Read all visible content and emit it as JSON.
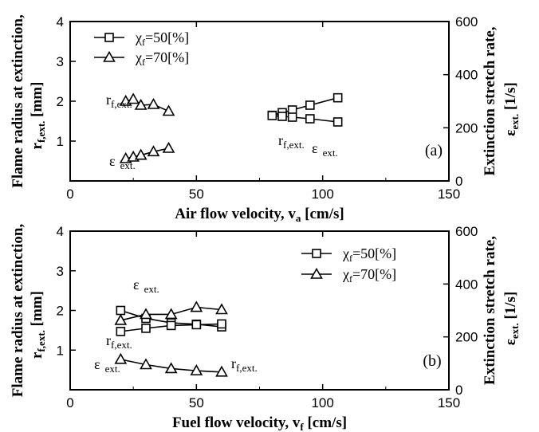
{
  "chart_data": [
    {
      "type": "line",
      "panel_label": "(a)",
      "xlabel": "Air flow velocity, v",
      "xlabel_sub": "a",
      "xlabel_unit": " [cm/s]",
      "ylabel_left_main": "Flame radius at extinction,",
      "ylabel_left_sym": "r",
      "ylabel_left_sub": "f,ext.",
      "ylabel_left_unit": " [mm]",
      "ylabel_right_main": "Extinction stretch rate,",
      "ylabel_right_sym": "ε",
      "ylabel_right_sub": "ext.",
      "ylabel_right_unit": " [1/s]",
      "xlim": [
        0,
        150
      ],
      "ylim_left": [
        0,
        4
      ],
      "ylim_right": [
        0,
        600
      ],
      "xticks": [
        "0",
        "50",
        "100",
        "150"
      ],
      "yticks_left": [
        "1",
        "2",
        "3",
        "4"
      ],
      "yticks_right": [
        "0",
        "200",
        "400",
        "600"
      ],
      "legend": [
        {
          "chi": "χ",
          "sub": "f",
          "value": "=50[%]",
          "marker": "square"
        },
        {
          "chi": "χ",
          "sub": "f",
          "value": "=70[%]",
          "marker": "triangle"
        }
      ],
      "series": [
        {
          "marker": "square",
          "axis": "right",
          "x": [
            80,
            84,
            88,
            95,
            106
          ],
          "y": [
            247,
            257,
            267,
            285,
            313
          ]
        },
        {
          "marker": "square",
          "axis": "left",
          "x": [
            80,
            84,
            88,
            95,
            106
          ],
          "y": [
            1.64,
            1.62,
            1.6,
            1.56,
            1.48
          ]
        },
        {
          "marker": "triangle",
          "axis": "left",
          "x": [
            22,
            25,
            28,
            33,
            39
          ],
          "y": [
            2.0,
            2.05,
            1.9,
            1.92,
            1.75
          ]
        },
        {
          "marker": "triangle",
          "axis": "right",
          "x": [
            22,
            25,
            28,
            33,
            39
          ],
          "y": [
            84,
            90,
            97,
            110,
            123
          ]
        }
      ],
      "annotations": [
        {
          "sym": "ε",
          "sub": "ext."
        },
        {
          "sym": "r",
          "sub": "f,ext."
        },
        {
          "sym": "r",
          "sub": "f,ext."
        },
        {
          "sym": "ε",
          "sub": "ext."
        }
      ]
    },
    {
      "type": "line",
      "panel_label": "(b)",
      "xlabel": "Fuel flow velocity, v",
      "xlabel_sub": "f",
      "xlabel_unit": " [cm/s]",
      "ylabel_left_main": "Flame radius at extinction,",
      "ylabel_left_sym": "r",
      "ylabel_left_sub": "f,ext.",
      "ylabel_left_unit": " [mm]",
      "ylabel_right_main": "Extinction stretch rate,",
      "ylabel_right_sym": "ε",
      "ylabel_right_sub": "ext.",
      "ylabel_right_unit": " [1/s]",
      "xlim": [
        0,
        150
      ],
      "ylim_left": [
        0,
        4
      ],
      "ylim_right": [
        0,
        600
      ],
      "xticks": [
        "0",
        "50",
        "100",
        "150"
      ],
      "yticks_left": [
        "1",
        "2",
        "3",
        "4"
      ],
      "yticks_right": [
        "0",
        "200",
        "400",
        "600"
      ],
      "legend": [
        {
          "chi": "χ",
          "sub": "f",
          "value": "=50[%]",
          "marker": "square"
        },
        {
          "chi": "χ",
          "sub": "f",
          "value": "=70[%]",
          "marker": "triangle"
        }
      ],
      "series": [
        {
          "marker": "square",
          "axis": "right",
          "x": [
            20,
            30,
            40,
            50,
            60
          ],
          "y": [
            300,
            270,
            253,
            248,
            238
          ]
        },
        {
          "marker": "square",
          "axis": "left",
          "x": [
            20,
            30,
            40,
            50,
            60
          ],
          "y": [
            1.47,
            1.55,
            1.62,
            1.64,
            1.66
          ]
        },
        {
          "marker": "triangle",
          "axis": "left",
          "x": [
            20,
            30,
            40,
            50,
            60
          ],
          "y": [
            1.75,
            1.9,
            1.9,
            2.08,
            2.02
          ]
        },
        {
          "marker": "triangle",
          "axis": "right",
          "x": [
            20,
            30,
            40,
            50,
            60
          ],
          "y": [
            115,
            95,
            80,
            72,
            67
          ]
        }
      ],
      "annotations": [
        {
          "sym": "ε",
          "sub": "ext."
        },
        {
          "sym": "r",
          "sub": "f,ext."
        },
        {
          "sym": "r",
          "sub": "f,ext."
        },
        {
          "sym": "ε",
          "sub": "ext."
        }
      ]
    }
  ]
}
